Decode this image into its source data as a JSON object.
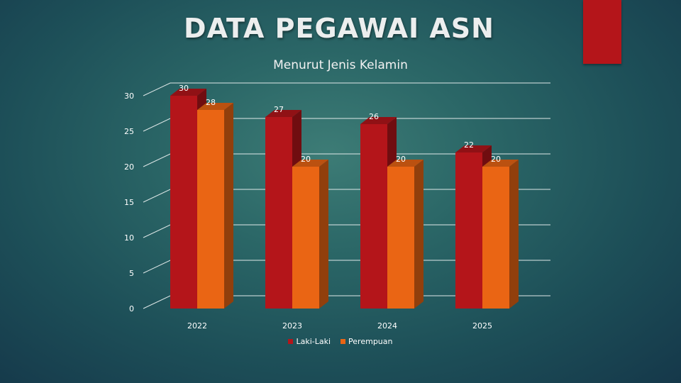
{
  "slide": {
    "title": "DATA PEGAWAI ASN"
  },
  "colors": {
    "accent": "#b4151a",
    "laki": "#b4151a",
    "perempuan": "#ea6514"
  },
  "chart_data": {
    "type": "bar",
    "title": "Menurut Jenis Kelamin",
    "categories": [
      "2022",
      "2023",
      "2024",
      "2025"
    ],
    "series": [
      {
        "name": "Laki-Laki",
        "values": [
          30,
          27,
          26,
          22
        ],
        "color": "#b4151a"
      },
      {
        "name": "Perempuan",
        "values": [
          28,
          20,
          20,
          20
        ],
        "color": "#ea6514"
      }
    ],
    "ylim": [
      0,
      30
    ],
    "yticks": [
      "0",
      "5",
      "10",
      "15",
      "20",
      "25",
      "30"
    ],
    "grid": true,
    "legend_position": "bottom",
    "style": "3d-column"
  }
}
